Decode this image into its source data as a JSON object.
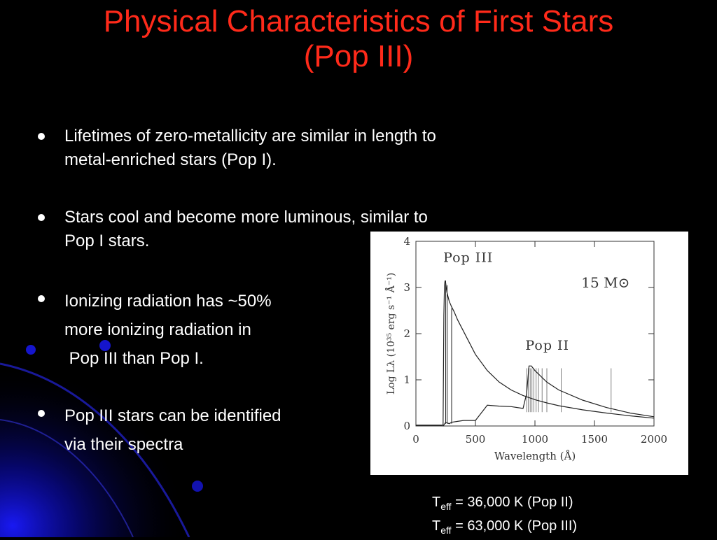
{
  "slide": {
    "title_line1": "Physical Characteristics of First Stars",
    "title_line2": "(Pop III)",
    "bullets": [
      {
        "lines": [
          "Lifetimes of zero-metallicity are similar in length to",
          "metal-enriched stars (Pop I)."
        ]
      },
      {
        "lines": [
          "Stars cool and become more luminous, similar to",
          "Pop I stars."
        ]
      },
      {
        "lines": [
          "Ionizing radiation has ~50%",
          "more ionizing radiation in",
          " Pop III than Pop I."
        ]
      },
      {
        "lines": [
          "Pop III stars can be identified",
          "via their spectra"
        ]
      }
    ],
    "teff": [
      {
        "symbol": "T",
        "sub": "eff",
        "value": " = 36,000 K (Pop II)"
      },
      {
        "symbol": "T",
        "sub": "eff",
        "value": " = 63,000 K (Pop III)"
      }
    ]
  },
  "chart_data": {
    "type": "line",
    "xlabel": "Wavelength (Å)",
    "ylabel": "Log Lλ (10³⁵ erg s⁻¹ Å⁻¹)",
    "xlim": [
      0,
      2000
    ],
    "ylim": [
      0,
      4
    ],
    "xticks": [
      0,
      500,
      1000,
      1500,
      2000
    ],
    "yticks": [
      0,
      1,
      2,
      3,
      4
    ],
    "annotation": "15 M⊙",
    "series": [
      {
        "name": "Pop III",
        "x": [
          0,
          220,
          228,
          235,
          240,
          245,
          250,
          255,
          260,
          270,
          280,
          300,
          320,
          350,
          400,
          450,
          500,
          600,
          700,
          800,
          900,
          1000,
          1100,
          1200,
          1400,
          1600,
          1800,
          2000
        ],
        "y": [
          0.02,
          0.02,
          0.02,
          2.4,
          3.05,
          3.15,
          3.1,
          3.0,
          2.9,
          2.8,
          2.7,
          2.58,
          2.48,
          2.3,
          2.05,
          1.8,
          1.55,
          1.2,
          0.95,
          0.78,
          0.66,
          0.57,
          0.5,
          0.44,
          0.35,
          0.28,
          0.22,
          0.17
        ]
      },
      {
        "name": "Pop II",
        "x": [
          0,
          200,
          230,
          250,
          280,
          300,
          350,
          400,
          500,
          600,
          700,
          800,
          900,
          930,
          950,
          970,
          1000,
          1100,
          1200,
          1400,
          1600,
          1800,
          2000
        ],
        "y": [
          0.01,
          0.01,
          0.0,
          0.08,
          0.05,
          0.08,
          0.1,
          0.12,
          0.12,
          0.45,
          0.43,
          0.42,
          0.38,
          0.7,
          1.3,
          1.3,
          1.2,
          0.95,
          0.78,
          0.56,
          0.4,
          0.28,
          0.2
        ]
      }
    ],
    "label_positions_data": {
      "Pop III": [
        230,
        3.55
      ],
      "Pop II": [
        920,
        1.65
      ],
      "15 M⊙": [
        1390,
        3.0
      ]
    }
  }
}
